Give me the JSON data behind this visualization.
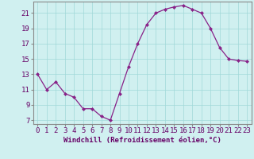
{
  "x": [
    0,
    1,
    2,
    3,
    4,
    5,
    6,
    7,
    8,
    9,
    10,
    11,
    12,
    13,
    14,
    15,
    16,
    17,
    18,
    19,
    20,
    21,
    22,
    23
  ],
  "y": [
    13,
    11,
    12,
    10.5,
    10,
    8.5,
    8.5,
    7.5,
    7,
    10.5,
    14,
    17,
    19.5,
    21,
    21.5,
    21.8,
    22,
    21.5,
    21,
    19,
    16.5,
    15,
    14.8,
    14.7
  ],
  "line_color": "#882288",
  "marker_color": "#882288",
  "background_color": "#d0f0f0",
  "grid_color": "#a0d8d8",
  "xlabel": "Windchill (Refroidissement éolien,°C)",
  "xlabel_fontsize": 6.5,
  "xtick_labels": [
    "0",
    "1",
    "2",
    "3",
    "4",
    "5",
    "6",
    "7",
    "8",
    "9",
    "10",
    "11",
    "12",
    "13",
    "14",
    "15",
    "16",
    "17",
    "18",
    "19",
    "20",
    "21",
    "22",
    "23"
  ],
  "ytick_values": [
    7,
    9,
    11,
    13,
    15,
    17,
    19,
    21
  ],
  "xlim": [
    -0.5,
    23.5
  ],
  "ylim": [
    6.5,
    22.5
  ],
  "tick_fontsize": 6.5,
  "spine_color": "#888888"
}
